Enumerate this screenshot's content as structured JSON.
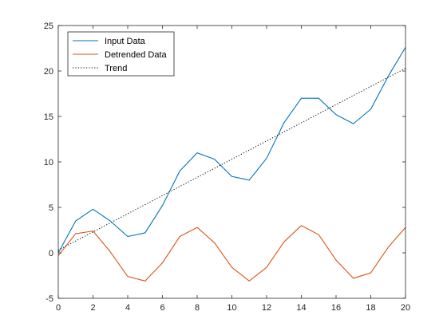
{
  "chart_data": {
    "type": "line",
    "xlim": [
      0,
      20
    ],
    "ylim": [
      -5,
      25
    ],
    "xticks": [
      0,
      2,
      4,
      6,
      8,
      10,
      12,
      14,
      16,
      18,
      20
    ],
    "yticks": [
      -5,
      0,
      5,
      10,
      15,
      20,
      25
    ],
    "grid": false,
    "legend_position": "top-left",
    "x": [
      0,
      1,
      2,
      3,
      4,
      5,
      6,
      7,
      8,
      9,
      10,
      11,
      12,
      13,
      14,
      15,
      16,
      17,
      18,
      19,
      20
    ],
    "series": [
      {
        "name": "Input Data",
        "color": "#0072BD",
        "style": "solid",
        "values": [
          0,
          3.5,
          4.8,
          3.5,
          1.8,
          2.2,
          5.2,
          9.0,
          11.0,
          10.3,
          8.4,
          8.0,
          10.4,
          14.3,
          17.0,
          17.0,
          15.2,
          14.2,
          15.8,
          19.4,
          22.6
        ]
      },
      {
        "name": "Detrended Data",
        "color": "#D95319",
        "style": "solid",
        "values": [
          -0.3,
          2.1,
          2.4,
          0.1,
          -2.6,
          -3.1,
          -1.1,
          1.8,
          2.8,
          1.1,
          -1.6,
          -3.1,
          -1.6,
          1.2,
          3.0,
          2.0,
          -0.8,
          -2.8,
          -2.2,
          0.6,
          2.8
        ]
      },
      {
        "name": "Trend",
        "color": "#000000",
        "style": "dotted",
        "values": [
          0.3,
          1.3,
          2.3,
          3.3,
          4.3,
          5.3,
          6.3,
          7.3,
          8.3,
          9.3,
          10.3,
          11.3,
          12.3,
          13.3,
          14.3,
          15.3,
          16.3,
          17.3,
          18.3,
          19.3,
          20.3
        ]
      }
    ]
  }
}
